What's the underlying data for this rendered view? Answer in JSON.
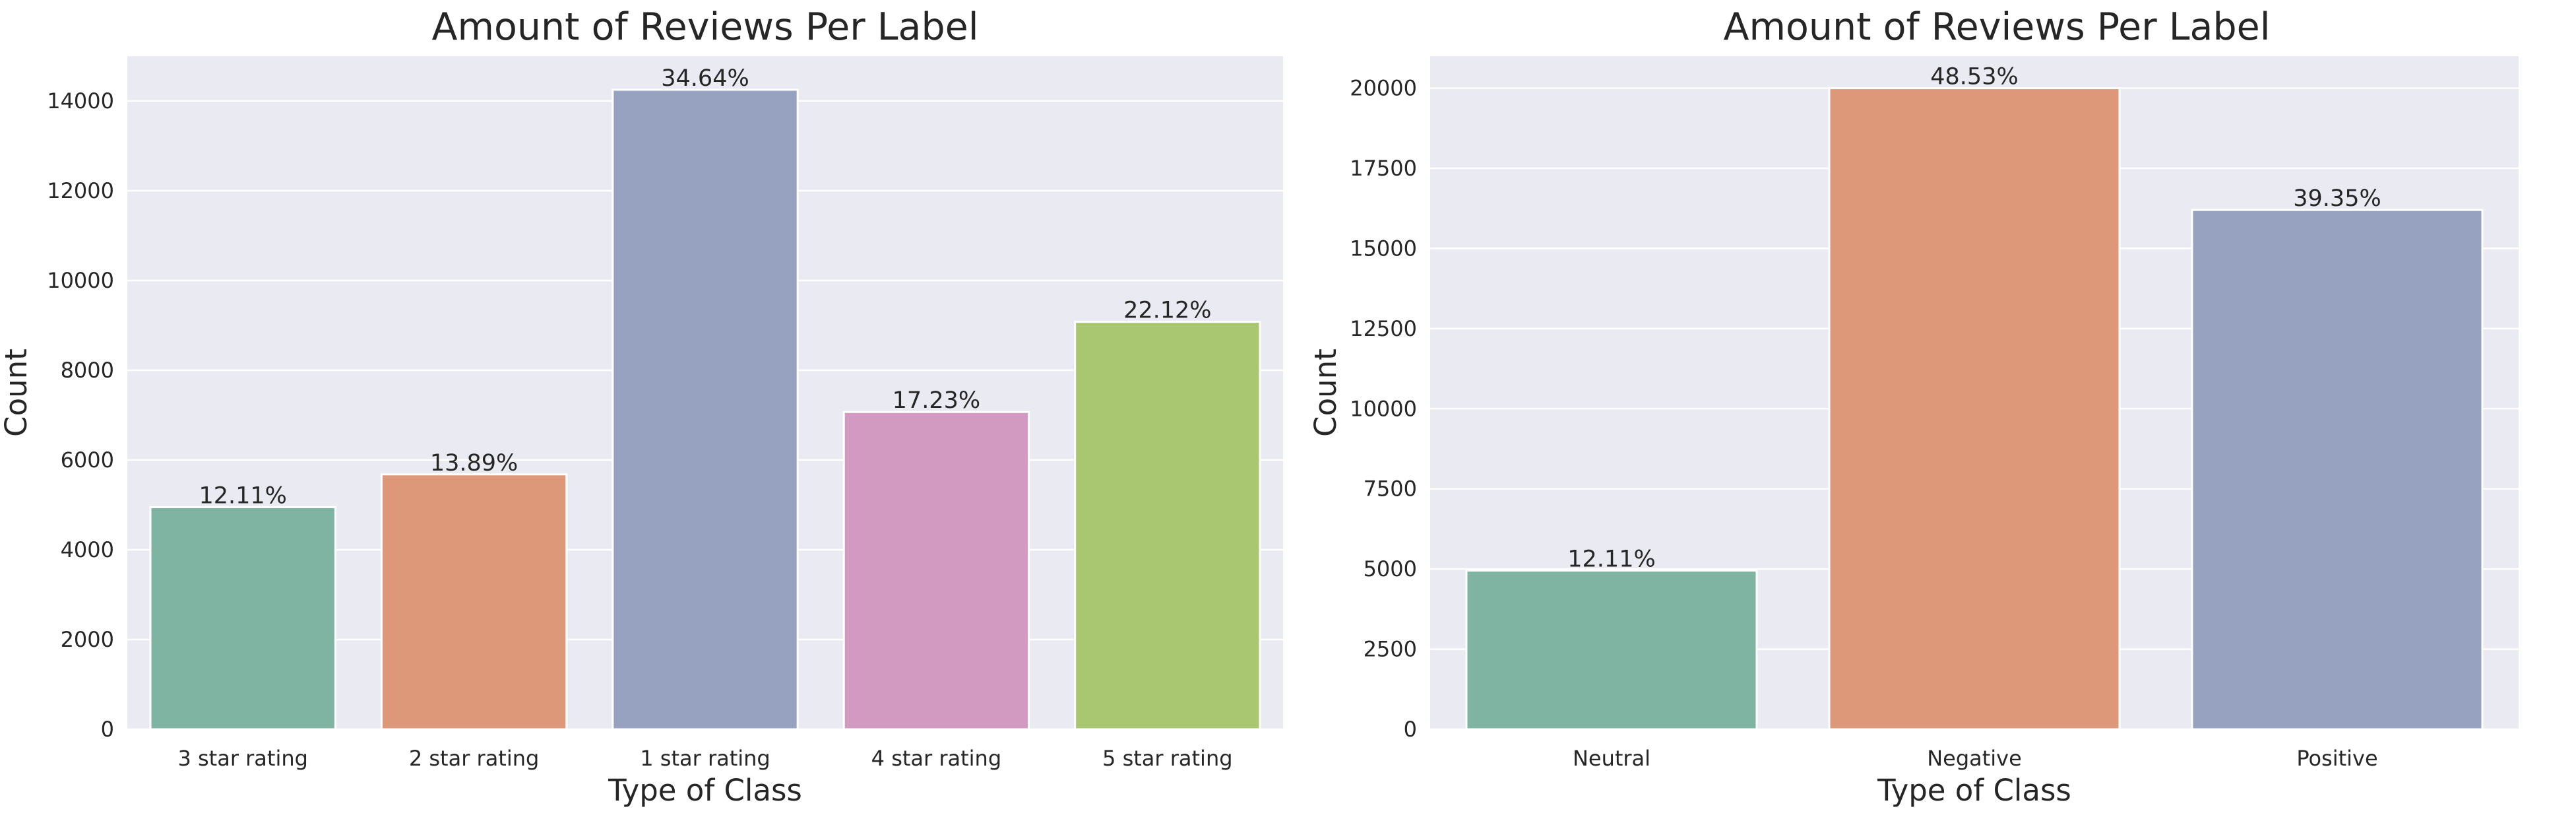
{
  "chart_data": [
    {
      "type": "bar",
      "title": "Amount of Reviews Per Label",
      "xlabel": "Type of Class",
      "ylabel": "Count",
      "ylim": [
        0,
        15000
      ],
      "yticks": [
        0,
        2000,
        4000,
        6000,
        8000,
        10000,
        12000,
        14000
      ],
      "grid": true,
      "categories": [
        "3 star rating",
        "2 star rating",
        "1 star rating",
        "4 star rating",
        "5 star rating"
      ],
      "values": [
        4950,
        5680,
        14250,
        7070,
        9080
      ],
      "data_labels": [
        "12.11%",
        "13.89%",
        "34.64%",
        "17.23%",
        "22.12%"
      ],
      "colors": [
        "#80b4a2",
        "#dd9879",
        "#97a2c1",
        "#d29ac1",
        "#a9c671"
      ]
    },
    {
      "type": "bar",
      "title": "Amount of Reviews Per Label",
      "xlabel": "Type of Class",
      "ylabel": "Count",
      "ylim": [
        0,
        21000
      ],
      "yticks": [
        0,
        2500,
        5000,
        7500,
        10000,
        12500,
        15000,
        17500,
        20000
      ],
      "grid": true,
      "categories": [
        "Neutral",
        "Negative",
        "Positive"
      ],
      "values": [
        4950,
        20000,
        16200
      ],
      "data_labels": [
        "12.11%",
        "48.53%",
        "39.35%"
      ],
      "colors": [
        "#80b4a2",
        "#dd9879",
        "#97a2c1"
      ]
    }
  ]
}
